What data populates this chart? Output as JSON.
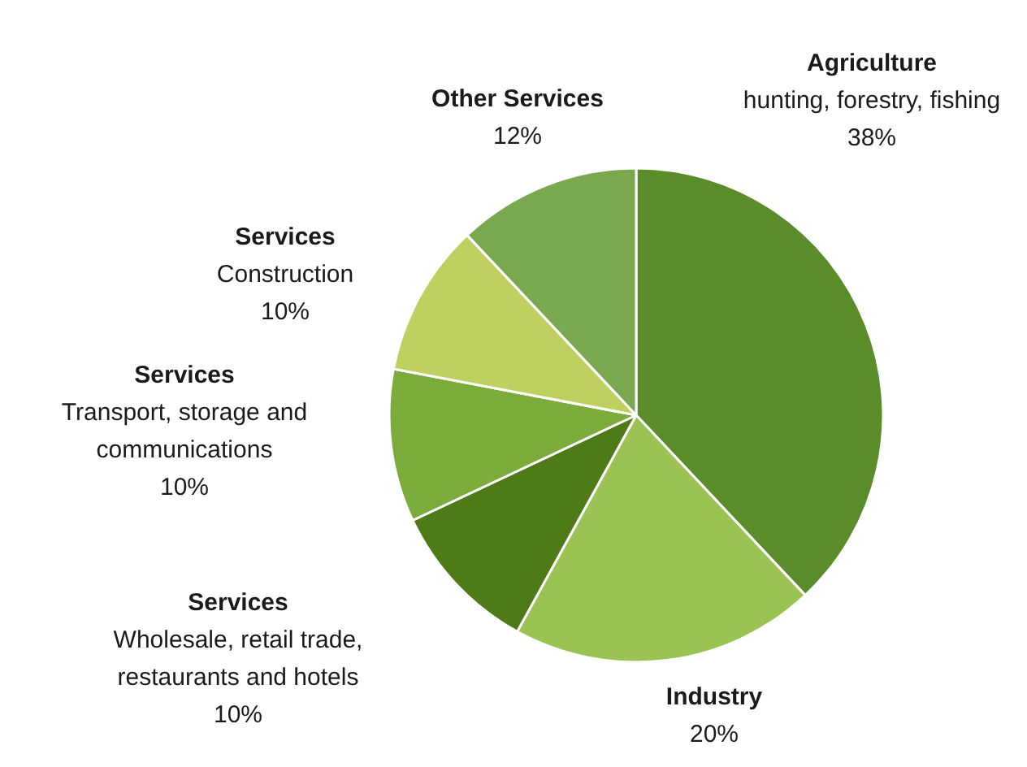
{
  "chart_data": {
    "type": "pie",
    "categories": [
      "Agriculture\nhunting, forestry, fishing",
      "Industry",
      "Services\nWholesale, retail trade,\nrestaurants and hotels",
      "Services\nTransport, storage and\ncommunications",
      "Services\nConstruction",
      "Other Services"
    ],
    "values": [
      38,
      20,
      10,
      10,
      10,
      12
    ],
    "value_labels": [
      "38%",
      "20%",
      "10%",
      "10%",
      "10%",
      "12%"
    ],
    "colors": [
      "#5b8c2a",
      "#9bc354",
      "#4e7a18",
      "#7bab3a",
      "#bfd061",
      "#79a84f"
    ]
  }
}
